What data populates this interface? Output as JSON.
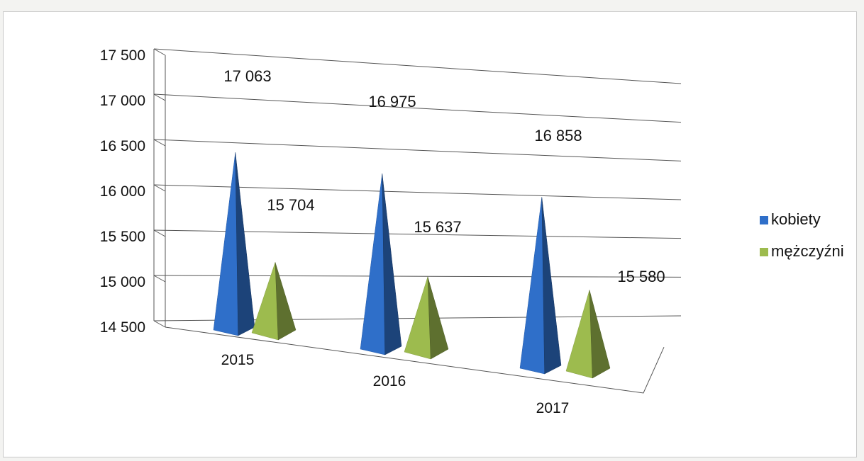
{
  "chart_data": {
    "type": "bar",
    "shape": "3d-pyramid",
    "categories": [
      "2015",
      "2016",
      "2017"
    ],
    "series": [
      {
        "name": "kobiety",
        "values": [
          17063,
          16975,
          16858
        ],
        "labels": [
          "17 063",
          "16 975",
          "16 858"
        ],
        "color": "#2f6fc9"
      },
      {
        "name": "mężczyźni",
        "values": [
          15704,
          15637,
          15580
        ],
        "labels": [
          "15 704",
          "15 637",
          "15 580"
        ],
        "color": "#9dbb4e"
      }
    ],
    "y_ticks": [
      "14 500",
      "15 000",
      "15 500",
      "16 000",
      "16 500",
      "17 000",
      "17 500"
    ],
    "y_tick_values": [
      14500,
      15000,
      15500,
      16000,
      16500,
      17000,
      17500
    ],
    "ylim": [
      14500,
      17500
    ],
    "grid": true,
    "legend_position": "right"
  }
}
